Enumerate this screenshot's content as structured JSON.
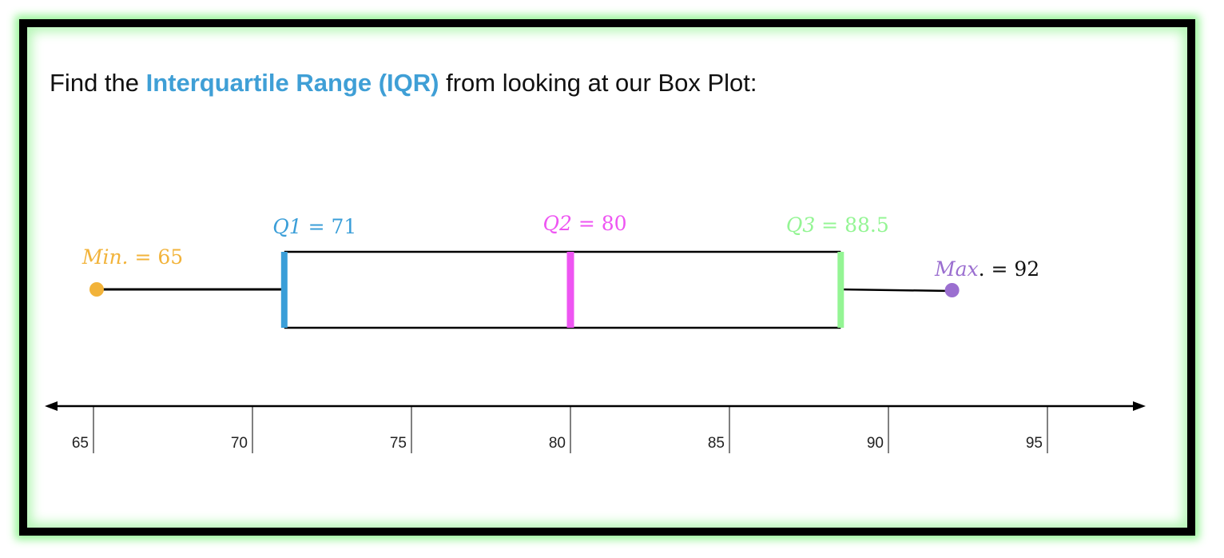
{
  "prompt": {
    "before": "Find the ",
    "highlight": "Interquartile Range (IQR)",
    "after": " from looking at our Box Plot:",
    "highlight_color": "#3f9fd6"
  },
  "colors": {
    "min": "#f2b33a",
    "q1": "#3a9ed8",
    "median": "#ee55f2",
    "q3": "#94f594",
    "max": "#9b6fd0",
    "frame_glow": "#98f598"
  },
  "chart_data": {
    "type": "box",
    "min": 65,
    "q1": 71,
    "median": 80,
    "q3": 88.5,
    "max": 92,
    "xlim": [
      64,
      98
    ],
    "ticks": [
      65,
      70,
      75,
      80,
      85,
      90,
      95
    ],
    "annotations": {
      "min": {
        "name": "Min.",
        "sep": " = ",
        "value": "65"
      },
      "q1": {
        "name": "Q1",
        "sep": " = ",
        "value": "71"
      },
      "median": {
        "name": "Q2",
        "sep": " = ",
        "value": "80"
      },
      "q3": {
        "name": "Q3",
        "sep": " = ",
        "value": "88.5"
      },
      "max": {
        "name": "Max",
        "sep": ". = ",
        "value": "92"
      }
    }
  }
}
